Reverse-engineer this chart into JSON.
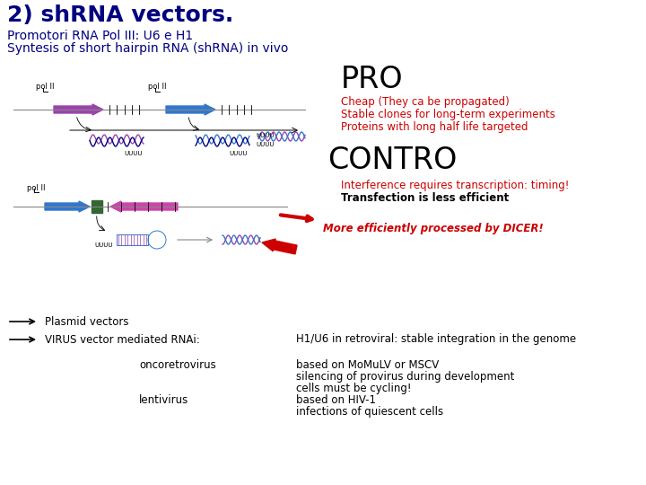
{
  "title": "2) shRNA vectors.",
  "subtitle_line1": "Promotori RNA Pol III: U6 e H1",
  "subtitle_line2": "Syntesis of short hairpin RNA (shRNA) in vivo",
  "title_color": "#000080",
  "subtitle_color": "#000080",
  "pro_heading": "PRO",
  "pro_items": [
    "Cheap (They ca be propagated)",
    "Stable clones for long-term experiments",
    "Proteins with long half life targeted"
  ],
  "pro_color": "#cc0000",
  "contro_heading": "CONTRO",
  "contro_item_red": "Interference requires transcription: timing!",
  "contro_item_black_bold": "Transfection is less efficient",
  "contro_item_red_bold": "More efficiently processed by DICER!",
  "plasmid_label": "Plasmid vectors",
  "virus_label": "VIRUS vector mediated RNAi:",
  "virus_right": "H1/U6 in retroviral: stable integration in the genome",
  "onco_label": "oncoretrovirus",
  "onco_right1": "based on MoMuLV or MSCV",
  "onco_right2": "silencing of provirus during development",
  "onco_right3": "cells must be cycling!",
  "lenti_label": "lentivirus",
  "lenti_right1": "based on HIV-1",
  "lenti_right2": "infections of quiescent cells",
  "bg_color": "#ffffff",
  "black": "#000000",
  "red": "#cc0000",
  "navy": "#000080",
  "purple": "#9944aa",
  "blue": "#3377cc",
  "pink": "#cc44aa",
  "green_sq": "#336633"
}
